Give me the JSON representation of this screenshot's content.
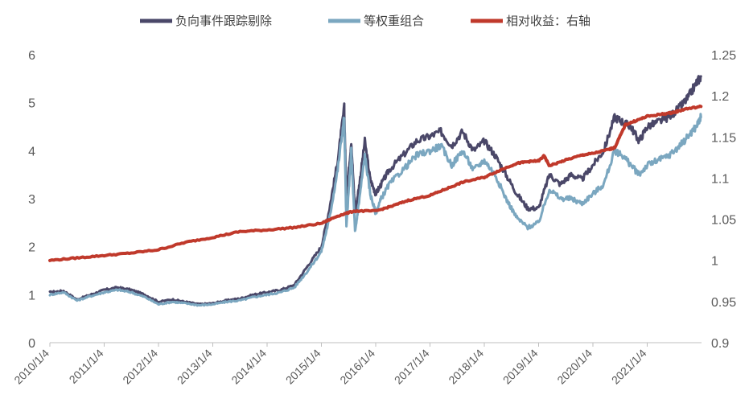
{
  "chart_data": {
    "type": "line",
    "legend": {
      "placement": "top-center",
      "items": [
        {
          "label": "负向事件跟踪剔除",
          "color": "#4a4768"
        },
        {
          "label": "等权重组合",
          "color": "#7ba7c0"
        },
        {
          "label": "相对收益：右轴",
          "color": "#c0392b"
        }
      ]
    },
    "axes": {
      "y_left": {
        "min": 0,
        "max": 6,
        "ticks": [
          "0",
          "1",
          "2",
          "3",
          "4",
          "5",
          "6"
        ]
      },
      "y_right": {
        "min": 0.9,
        "max": 1.25,
        "ticks": [
          "0.9",
          "0.95",
          "1",
          "1.05",
          "1.1",
          "1.15",
          "1.2",
          "1.25"
        ]
      },
      "x_ticks": [
        "2010/1/4",
        "2011/1/4",
        "2012/1/4",
        "2013/1/4",
        "2014/1/4",
        "2015/1/4",
        "2016/1/4",
        "2017/1/4",
        "2018/1/4",
        "2019/1/4",
        "2020/1/4",
        "2021/1/4"
      ],
      "x_range": [
        "2010/1/4",
        "2021/12/31"
      ],
      "grid": false
    },
    "series": [
      {
        "name": "负向事件跟踪剔除",
        "axis": "left",
        "color": "#4a4768",
        "x": [
          2010.0,
          2010.25,
          2010.5,
          2010.75,
          2011.0,
          2011.25,
          2011.5,
          2011.75,
          2012.0,
          2012.25,
          2012.5,
          2012.75,
          2013.0,
          2013.25,
          2013.5,
          2013.75,
          2014.0,
          2014.25,
          2014.5,
          2014.75,
          2015.0,
          2015.15,
          2015.3,
          2015.42,
          2015.46,
          2015.55,
          2015.62,
          2015.7,
          2015.8,
          2015.9,
          2016.0,
          2016.1,
          2016.25,
          2016.5,
          2016.75,
          2017.0,
          2017.2,
          2017.4,
          2017.6,
          2017.8,
          2018.0,
          2018.2,
          2018.4,
          2018.6,
          2018.8,
          2019.0,
          2019.2,
          2019.4,
          2019.6,
          2019.8,
          2020.0,
          2020.2,
          2020.4,
          2020.55,
          2020.7,
          2020.85,
          2021.0,
          2021.2,
          2021.4,
          2021.6,
          2021.75,
          2021.9,
          2021.99
        ],
        "y": [
          1.05,
          1.08,
          0.9,
          1.0,
          1.1,
          1.15,
          1.1,
          1.0,
          0.85,
          0.9,
          0.85,
          0.8,
          0.82,
          0.88,
          0.92,
          1.0,
          1.05,
          1.1,
          1.2,
          1.6,
          2.0,
          2.8,
          3.8,
          4.9,
          3.0,
          4.2,
          2.7,
          3.3,
          4.2,
          3.4,
          3.1,
          3.3,
          3.6,
          3.9,
          4.2,
          4.3,
          4.4,
          4.1,
          4.4,
          4.0,
          4.2,
          3.9,
          3.5,
          3.1,
          2.8,
          2.8,
          3.5,
          3.3,
          3.5,
          3.4,
          3.7,
          4.0,
          4.7,
          4.6,
          4.5,
          4.2,
          4.5,
          4.6,
          4.7,
          4.9,
          5.1,
          5.4,
          5.55
        ]
      },
      {
        "name": "等权重组合",
        "axis": "left",
        "color": "#7ba7c0",
        "x": [
          2010.0,
          2010.25,
          2010.5,
          2010.75,
          2011.0,
          2011.25,
          2011.5,
          2011.75,
          2012.0,
          2012.25,
          2012.5,
          2012.75,
          2013.0,
          2013.25,
          2013.5,
          2013.75,
          2014.0,
          2014.25,
          2014.5,
          2014.75,
          2015.0,
          2015.15,
          2015.3,
          2015.42,
          2015.46,
          2015.55,
          2015.62,
          2015.7,
          2015.8,
          2015.9,
          2016.0,
          2016.1,
          2016.25,
          2016.5,
          2016.75,
          2017.0,
          2017.2,
          2017.4,
          2017.6,
          2017.8,
          2018.0,
          2018.2,
          2018.4,
          2018.6,
          2018.8,
          2019.0,
          2019.2,
          2019.4,
          2019.6,
          2019.8,
          2020.0,
          2020.2,
          2020.4,
          2020.55,
          2020.7,
          2020.85,
          2021.0,
          2021.2,
          2021.4,
          2021.6,
          2021.75,
          2021.9,
          2021.99
        ],
        "y": [
          1.0,
          1.05,
          0.88,
          0.97,
          1.05,
          1.1,
          1.05,
          0.95,
          0.8,
          0.85,
          0.82,
          0.78,
          0.8,
          0.85,
          0.88,
          0.95,
          1.0,
          1.05,
          1.15,
          1.5,
          1.9,
          2.6,
          3.6,
          4.7,
          2.4,
          4.0,
          2.3,
          3.0,
          3.9,
          3.1,
          2.7,
          3.0,
          3.3,
          3.6,
          3.9,
          4.0,
          4.1,
          3.7,
          4.0,
          3.6,
          3.8,
          3.5,
          3.0,
          2.6,
          2.4,
          2.5,
          3.2,
          3.0,
          3.0,
          2.9,
          3.1,
          3.3,
          4.0,
          3.9,
          3.7,
          3.5,
          3.7,
          3.8,
          3.9,
          4.1,
          4.3,
          4.5,
          4.7
        ]
      },
      {
        "name": "相对收益：右轴",
        "axis": "right",
        "color": "#c0392b",
        "x": [
          2010.0,
          2010.5,
          2011.0,
          2011.5,
          2012.0,
          2012.5,
          2013.0,
          2013.5,
          2014.0,
          2014.5,
          2015.0,
          2015.3,
          2015.6,
          2016.0,
          2016.3,
          2016.6,
          2017.0,
          2017.3,
          2017.6,
          2018.0,
          2018.3,
          2018.6,
          2018.8,
          2019.0,
          2019.1,
          2019.2,
          2019.5,
          2019.8,
          2020.0,
          2020.3,
          2020.4,
          2020.6,
          2020.8,
          2021.0,
          2021.3,
          2021.5,
          2021.7,
          2021.99
        ],
        "y": [
          1.0,
          1.003,
          1.006,
          1.009,
          1.013,
          1.022,
          1.028,
          1.035,
          1.037,
          1.04,
          1.045,
          1.054,
          1.06,
          1.06,
          1.066,
          1.073,
          1.079,
          1.087,
          1.095,
          1.101,
          1.11,
          1.118,
          1.12,
          1.121,
          1.127,
          1.115,
          1.122,
          1.128,
          1.13,
          1.135,
          1.137,
          1.165,
          1.17,
          1.175,
          1.178,
          1.18,
          1.184,
          1.187
        ]
      }
    ]
  }
}
